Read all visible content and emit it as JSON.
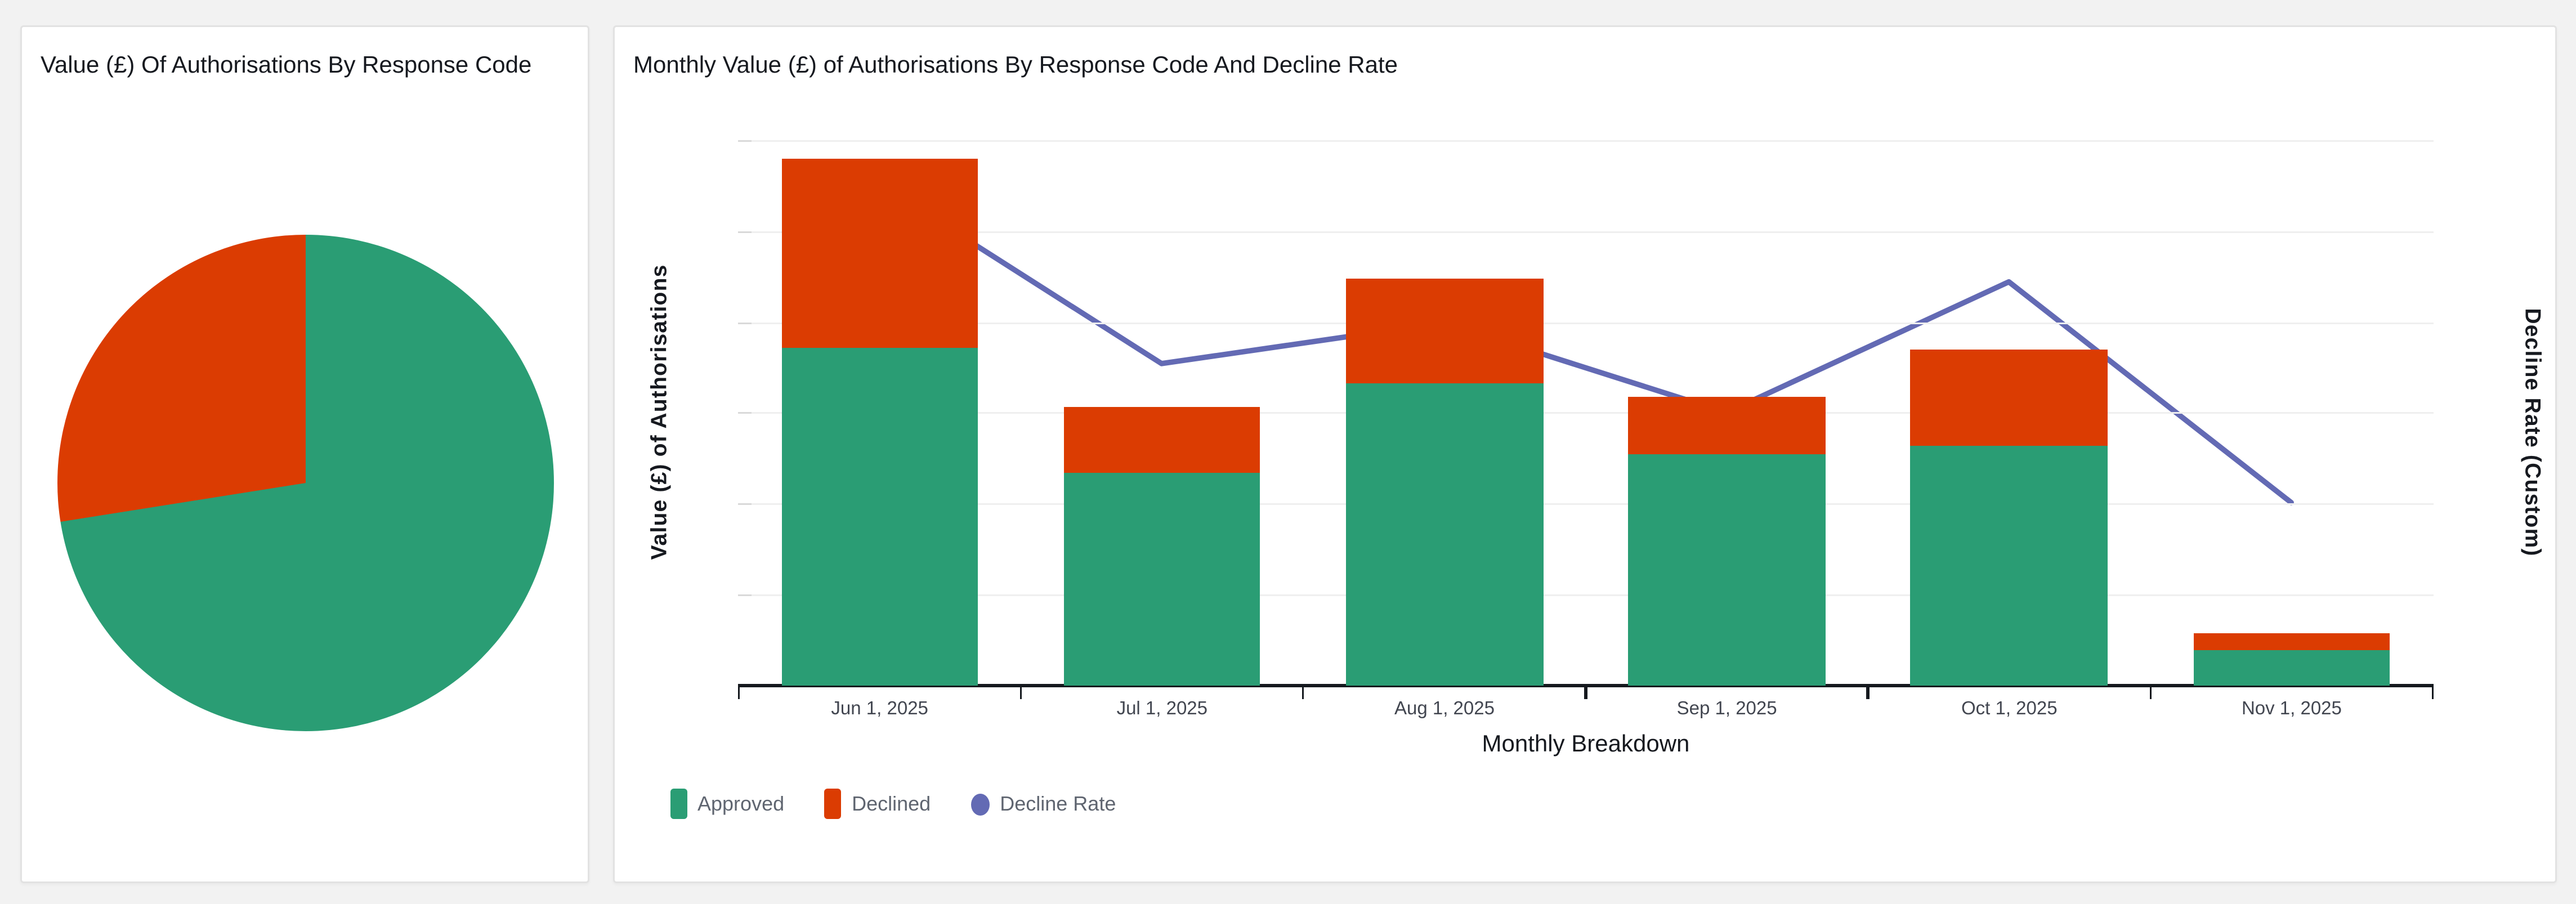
{
  "page": {
    "background_color": "#f2f2f2"
  },
  "colors": {
    "approved": "#2a9d74",
    "declined": "#db3c02",
    "decline_rate": "#636ab4",
    "gridline": "#efefef",
    "grid_tick": "#d9d9d9",
    "axis_line": "#15191e",
    "panel_border": "#e2e2e2",
    "title_text": "#16191f",
    "tick_text": "#424650",
    "legend_text": "#5f6570"
  },
  "pie_panel": {
    "title": "Value (£) Of Authorisations By Response Code"
  },
  "combo_panel": {
    "title": "Monthly Value (£) of Authorisations By Response Code And Decline Rate",
    "x_axis_title": "Monthly Breakdown",
    "y_axis_title": "Value (£) of Authorisations",
    "y2_axis_title": "Decline Rate (Custom)",
    "legend": [
      {
        "label": "Approved",
        "shape": "square",
        "color_key": "approved"
      },
      {
        "label": "Declined",
        "shape": "square",
        "color_key": "declined"
      },
      {
        "label": "Decline Rate",
        "shape": "circle",
        "color_key": "decline_rate"
      }
    ]
  },
  "chart_data": [
    {
      "type": "pie",
      "title": "Value (£) Of Authorisations By Response Code",
      "legend_position": "none",
      "slices": [
        {
          "label": "Approved",
          "value_pct": 72.5,
          "color": "#2a9d74"
        },
        {
          "label": "Declined",
          "value_pct": 27.5,
          "color": "#db3c02"
        }
      ],
      "note": "Slice sizes estimated from slice angles; chart shows no data labels or legend."
    },
    {
      "type": "bar",
      "subtype": "stacked-bar-with-line",
      "title": "Monthly Value (£) of Authorisations By Response Code And Decline Rate",
      "categories": [
        "Jun 1, 2025",
        "Jul 1, 2025",
        "Aug 1, 2025",
        "Sep 1, 2025",
        "Oct 1, 2025",
        "Nov 1, 2025"
      ],
      "series": [
        {
          "name": "Approved",
          "type": "bar",
          "stack": true,
          "axis": "left",
          "values": [
            62,
            39,
            55.5,
            42.5,
            44,
            6.5
          ]
        },
        {
          "name": "Declined",
          "type": "bar",
          "stack": true,
          "axis": "left",
          "values": [
            34.5,
            12,
            19,
            10.5,
            17.5,
            3
          ]
        },
        {
          "name": "Decline Rate",
          "type": "line",
          "axis": "right",
          "values": [
            92,
            59,
            66.5,
            50,
            74,
            33.5
          ]
        }
      ],
      "units": "percent of y-axis range; both value axes have no visible tick labels, values estimated from gridlines",
      "xlabel": "Monthly Breakdown",
      "ylabel": "Value (£) of Authorisations",
      "y2label": "Decline Rate (Custom)",
      "ylim": [
        0,
        100
      ],
      "grid": "horizontal, 6 equal intervals, light gray",
      "legend_position": "bottom-left"
    }
  ]
}
